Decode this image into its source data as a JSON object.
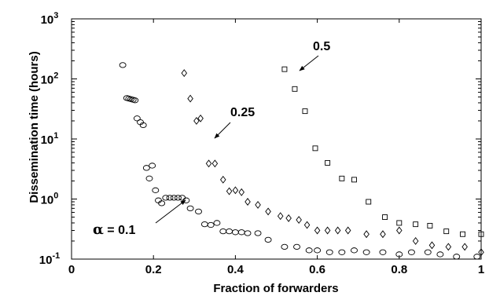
{
  "chart_data": {
    "type": "scatter",
    "title": "",
    "xlabel": "Fraction of forwarders",
    "ylabel": "Dissemination time (hours)",
    "xlim": [
      0,
      1
    ],
    "ylim": [
      0.1,
      1000
    ],
    "yscale": "log",
    "grid": false,
    "x_ticks": [
      "0",
      "0.2",
      "0.4",
      "0.6",
      "0.8",
      "1"
    ],
    "y_ticks": [
      {
        "base": "10",
        "exp": "-1",
        "value": 0.1
      },
      {
        "base": "10",
        "exp": "0",
        "value": 1
      },
      {
        "base": "10",
        "exp": "1",
        "value": 10
      },
      {
        "base": "10",
        "exp": "2",
        "value": 100
      },
      {
        "base": "10",
        "exp": "3",
        "value": 1000
      }
    ],
    "series": [
      {
        "label": "α = 0.1",
        "marker": "circle",
        "x": [
          0.125,
          0.135,
          0.14,
          0.145,
          0.15,
          0.155,
          0.16,
          0.168,
          0.175,
          0.183,
          0.19,
          0.197,
          0.205,
          0.212,
          0.22,
          0.23,
          0.24,
          0.25,
          0.26,
          0.27,
          0.28,
          0.29,
          0.31,
          0.325,
          0.34,
          0.355,
          0.37,
          0.385,
          0.4,
          0.415,
          0.43,
          0.455,
          0.48,
          0.52,
          0.55,
          0.58,
          0.6,
          0.63,
          0.66,
          0.69,
          0.72,
          0.76,
          0.8,
          0.83,
          0.87,
          0.9,
          0.94,
          0.99
        ],
        "y": [
          170,
          48,
          47,
          46,
          45,
          44,
          22,
          19,
          17,
          3.3,
          2.2,
          3.6,
          1.4,
          0.95,
          0.85,
          1.05,
          1.05,
          1.05,
          1.05,
          1.05,
          0.95,
          0.7,
          0.62,
          0.38,
          0.37,
          0.4,
          0.29,
          0.29,
          0.28,
          0.28,
          0.27,
          0.27,
          0.21,
          0.16,
          0.16,
          0.14,
          0.14,
          0.13,
          0.13,
          0.14,
          0.13,
          0.13,
          0.12,
          0.13,
          0.13,
          0.12,
          0.11,
          0.11
        ]
      },
      {
        "label": "0.25",
        "marker": "diamond",
        "x": [
          0.275,
          0.29,
          0.305,
          0.315,
          0.335,
          0.35,
          0.37,
          0.385,
          0.4,
          0.415,
          0.43,
          0.455,
          0.48,
          0.51,
          0.53,
          0.555,
          0.575,
          0.6,
          0.625,
          0.65,
          0.675,
          0.72,
          0.76,
          0.8,
          0.84,
          0.88,
          0.92,
          0.96,
          1.0
        ],
        "y": [
          125,
          47,
          20,
          22,
          3.9,
          3.9,
          2.1,
          1.35,
          1.4,
          1.3,
          0.9,
          0.8,
          0.62,
          0.52,
          0.48,
          0.45,
          0.37,
          0.3,
          0.3,
          0.3,
          0.3,
          0.26,
          0.26,
          0.3,
          0.2,
          0.17,
          0.16,
          0.16,
          0.13
        ]
      },
      {
        "label": "0.5",
        "marker": "square",
        "x": [
          0.52,
          0.545,
          0.57,
          0.595,
          0.625,
          0.66,
          0.69,
          0.725,
          0.765,
          0.8,
          0.84,
          0.875,
          0.915,
          0.955,
          1.0
        ],
        "y": [
          145,
          68,
          29,
          7,
          4,
          2.2,
          2.1,
          0.9,
          0.5,
          0.4,
          0.38,
          0.36,
          0.29,
          0.26,
          0.26
        ]
      }
    ],
    "annotations": [
      {
        "text": "0.5",
        "target": "square"
      },
      {
        "text": "0.25",
        "target": "diamond"
      },
      {
        "greek": "α",
        "text": " = 0.1",
        "target": "circle"
      }
    ]
  }
}
